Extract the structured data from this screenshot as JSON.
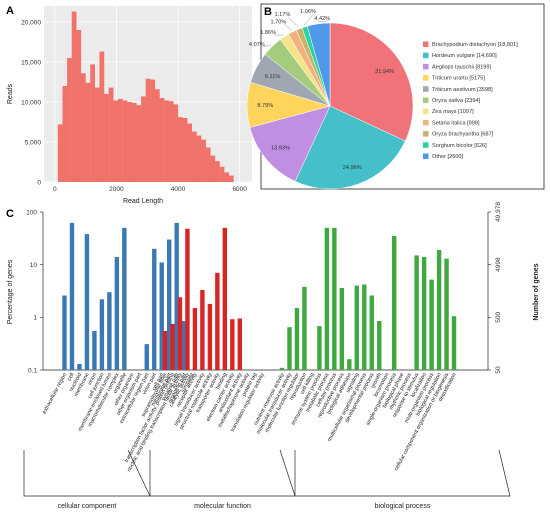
{
  "panels": {
    "a": "A",
    "b": "B",
    "c": "C"
  },
  "chart_data": [
    {
      "type": "bar",
      "panel": "A",
      "xlabel": "Read Length",
      "ylabel": "Reads",
      "xlim": [
        0,
        6000
      ],
      "ylim": [
        0,
        22000
      ],
      "x_ticks": [
        0,
        2000,
        4000,
        6000
      ],
      "y_ticks": [
        0,
        5000,
        10000,
        15000,
        20000
      ],
      "bin_width": 150,
      "x_start": 100,
      "values": [
        7200,
        12000,
        15500,
        21300,
        19000,
        13600,
        12400,
        14700,
        11800,
        16300,
        11000,
        11800,
        10200,
        10400,
        10200,
        10000,
        9900,
        9600,
        10700,
        12900,
        12800,
        11600,
        10500,
        10200,
        10100,
        9700,
        8100,
        8000,
        7300,
        6300,
        5800,
        5300,
        4300,
        3300,
        2600,
        1900,
        1200,
        800
      ],
      "color": "#f0736b",
      "background": "#ebebeb"
    },
    {
      "type": "pie",
      "panel": "B",
      "slices": [
        {
          "label": "Brachypodium distachyon [18,801]",
          "value": 31.94,
          "pct_label": "31.94%",
          "color": "#f0737a"
        },
        {
          "label": "Hordeum vulgare [14,690]",
          "value": 24.96,
          "pct_label": "24.96%",
          "color": "#45c0c8"
        },
        {
          "label": "Aegilops tauschii [8199]",
          "value": 13.93,
          "pct_label": "13.93%",
          "color": "#c08ee3"
        },
        {
          "label": "Triticum urartu [5175]",
          "value": 8.79,
          "pct_label": "8.79%",
          "color": "#fed45c"
        },
        {
          "label": "Triticum aestivum [3598]",
          "value": 6.11,
          "pct_label": "6.11%",
          "color": "#9fa7b2"
        },
        {
          "label": "Oryza sativa [2394]",
          "value": 4.07,
          "pct_label": "4.07%",
          "color": "#a5cc7d"
        },
        {
          "label": "Zea mays [1097]",
          "value": 1.86,
          "pct_label": "1.86%",
          "color": "#f5e38a"
        },
        {
          "label": "Setaria italica [998]",
          "value": 1.7,
          "pct_label": "1.70%",
          "color": "#f2b27f"
        },
        {
          "label": "Oryza brachyantha [687]",
          "value": 1.17,
          "pct_label": "1.17%",
          "color": "#c7b36b"
        },
        {
          "label": "Sorghum bicolor [626]",
          "value": 1.06,
          "pct_label": "1.06%",
          "color": "#2fd1a2"
        },
        {
          "label": "Other [2600]",
          "value": 4.42,
          "pct_label": "4.42%",
          "color": "#4f9ae8"
        }
      ]
    },
    {
      "type": "bar",
      "panel": "C",
      "ylabel": "Percentage of genes",
      "y2label": "Number of genes",
      "yscale": "log",
      "ylim": [
        0.1,
        100
      ],
      "y_ticks": [
        "0.1",
        "1",
        "10",
        "100"
      ],
      "y_tick_values": [
        0.1,
        1,
        10,
        100
      ],
      "y2_ticks": [
        "50",
        "500",
        "4998",
        "49,978"
      ],
      "groups": [
        {
          "name": "cellular component",
          "color": "#3a79b3",
          "categories": [
            "extracellular region",
            "cell",
            "nucleoid",
            "membrane",
            "virion",
            "cell junction",
            "membrane-enclosed lumen",
            "macromolecular complex",
            "organelle",
            "other organism",
            "other organism part",
            "extracellular region part",
            "virion part",
            "cell part",
            "membrane part",
            "synapse part",
            "organelle part",
            "symplast"
          ],
          "values": [
            2.6,
            62,
            0.13,
            38,
            0.55,
            2.2,
            3.0,
            14,
            50,
            null,
            null,
            0.31,
            20,
            11,
            30,
            62,
            0.85,
            null
          ]
        },
        {
          "name": "molecular function",
          "color": "#d92424",
          "categories": [
            "supramolecular fiber",
            "transcription factor activity, protein binding",
            "nucleic acid binding transcription factor activity",
            "catalytic activity",
            "receptor activity",
            "signal transducer activity",
            "structural molecule activity",
            "transporter activity",
            "binding",
            "electron carrier activity",
            "antioxidant activity",
            "metallochaperone activity",
            "protein tag",
            "translation regulator activity"
          ],
          "values": [
            0.55,
            0.75,
            2.4,
            48,
            1.5,
            3.3,
            1.8,
            7.0,
            50,
            0.92,
            0.95,
            null,
            null,
            null
          ]
        },
        {
          "name": "biological process",
          "color": "#3fa83f",
          "categories": [
            "nutrient reservoir activity",
            "molecular transducer activity",
            "molecular function regulator",
            "reproduction",
            "cell killing",
            "immune system process",
            "metabolic process",
            "cellular process",
            "reproductive process",
            "biological adhesion",
            "signaling",
            "multicellular organismal process",
            "developmental process",
            "growth",
            "locomotion",
            "single-organism process",
            "biological phase",
            "rhythmic process",
            "response to stimulus",
            "localization",
            "multi-organism process",
            "biological regulation",
            "cellular component organization or biogenesis",
            "detoxification"
          ],
          "values": [
            0.11,
            0.65,
            1.5,
            3.8,
            null,
            0.68,
            50,
            50,
            3.6,
            0.16,
            4.0,
            4.2,
            2.6,
            0.85,
            null,
            35,
            null,
            null,
            15,
            14,
            5.2,
            19,
            13,
            1.05
          ]
        }
      ]
    }
  ]
}
